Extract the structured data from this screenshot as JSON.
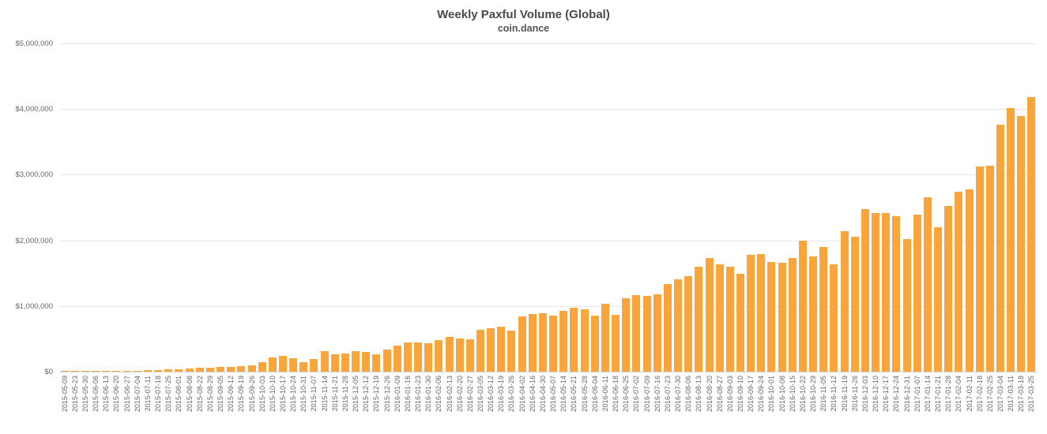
{
  "chart_data": {
    "type": "bar",
    "title": "Weekly Paxful Volume (Global)",
    "subtitle": "coin.dance",
    "xlabel": "",
    "ylabel": "",
    "ylim": [
      0,
      5000000
    ],
    "ytick_labels": [
      "$0",
      "$1,000,000",
      "$2,000,000",
      "$3,000,000",
      "$4,000,000",
      "$5,000,000"
    ],
    "grid": true,
    "legend_position": "none",
    "bar_color": "#F9A53B",
    "categories": [
      "2015-05-09",
      "2015-05-23",
      "2015-05-30",
      "2015-06-06",
      "2015-06-13",
      "2015-06-20",
      "2015-06-27",
      "2015-07-04",
      "2015-07-11",
      "2015-07-18",
      "2015-07-25",
      "2015-08-01",
      "2015-08-08",
      "2015-08-22",
      "2015-08-29",
      "2015-09-05",
      "2015-09-12",
      "2015-09-19",
      "2015-09-26",
      "2015-10-03",
      "2015-10-10",
      "2015-10-17",
      "2015-10-24",
      "2015-10-31",
      "2015-11-07",
      "2015-11-14",
      "2015-11-21",
      "2015-11-28",
      "2015-12-05",
      "2015-12-12",
      "2015-12-19",
      "2015-12-26",
      "2016-01-09",
      "2016-01-16",
      "2016-01-23",
      "2016-01-30",
      "2016-02-06",
      "2016-02-13",
      "2016-02-20",
      "2016-02-27",
      "2016-03-05",
      "2016-03-12",
      "2016-03-19",
      "2016-03-26",
      "2016-04-02",
      "2016-04-16",
      "2016-04-30",
      "2016-05-07",
      "2016-05-14",
      "2016-05-21",
      "2016-05-28",
      "2016-06-04",
      "2016-06-11",
      "2016-06-18",
      "2016-06-25",
      "2016-07-02",
      "2016-07-09",
      "2016-07-16",
      "2016-07-23",
      "2016-07-30",
      "2016-08-06",
      "2016-08-13",
      "2016-08-20",
      "2016-08-27",
      "2016-09-03",
      "2016-09-10",
      "2016-09-17",
      "2016-09-24",
      "2016-10-01",
      "2016-10-08",
      "2016-10-15",
      "2016-10-22",
      "2016-10-29",
      "2016-11-05",
      "2016-11-12",
      "2016-11-19",
      "2016-11-26",
      "2016-12-03",
      "2016-12-10",
      "2016-12-17",
      "2016-12-24",
      "2016-12-31",
      "2017-01-07",
      "2017-01-14",
      "2017-01-21",
      "2017-01-28",
      "2017-02-04",
      "2017-02-11",
      "2017-02-18",
      "2017-02-25",
      "2017-03-04",
      "2017-03-11",
      "2017-03-18",
      "2017-03-25"
    ],
    "values": [
      5000,
      8000,
      7000,
      9000,
      10000,
      12000,
      15000,
      18000,
      25000,
      30000,
      35000,
      40000,
      50000,
      55000,
      60000,
      70000,
      75000,
      85000,
      95000,
      140000,
      215000,
      240000,
      205000,
      150000,
      190000,
      310000,
      265000,
      275000,
      310000,
      300000,
      265000,
      340000,
      400000,
      445000,
      450000,
      435000,
      480000,
      530000,
      505000,
      495000,
      640000,
      660000,
      685000,
      625000,
      840000,
      880000,
      890000,
      855000,
      925000,
      975000,
      950000,
      855000,
      1030000,
      870000,
      1120000,
      1160000,
      1155000,
      1180000,
      1330000,
      1410000,
      1460000,
      1600000,
      1730000,
      1630000,
      1600000,
      1490000,
      1780000,
      1790000,
      1670000,
      1660000,
      1730000,
      2000000,
      1760000,
      1900000,
      1640000,
      2140000,
      2060000,
      2480000,
      2410000,
      2410000,
      2370000,
      2020000,
      2390000,
      2660000,
      2200000,
      2530000,
      2740000,
      2780000,
      3130000,
      3140000,
      3760000,
      4020000,
      3890000,
      4180000
    ]
  }
}
